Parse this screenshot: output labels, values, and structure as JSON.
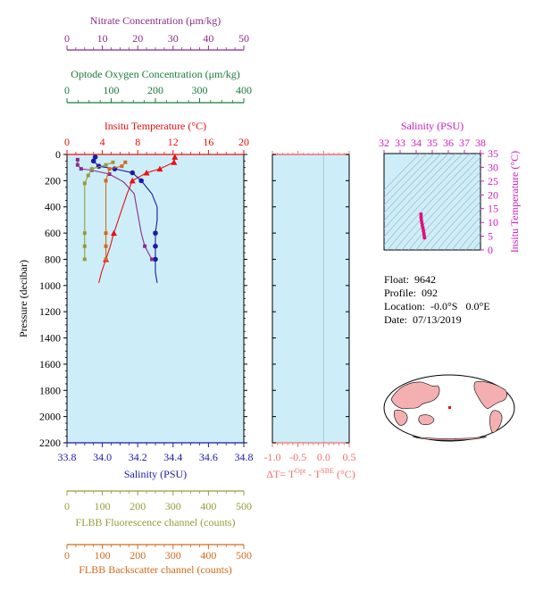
{
  "colors": {
    "nitrate": "#8b2c8b",
    "oxygen": "#1a7a3c",
    "temperature": "#e81010",
    "salinity": "#1a1aa8",
    "fluorescence": "#9a9a3a",
    "backscatter": "#d46a1a",
    "delta_t": "#f07070",
    "ts_axis": "#d01cc0",
    "plot_bg": "#cdeef8",
    "land": "#f4b0b0"
  },
  "info": {
    "float_label": "Float:",
    "float_value": "9642",
    "profile_label": "Profile:",
    "profile_value": "092",
    "location_label": "Location:",
    "location_value": "-0.0°S   0.0°E",
    "date_label": "Date:",
    "date_value": "07/13/2019"
  },
  "chart_data": [
    {
      "type": "line",
      "title": "",
      "ylabel": "Pressure (decibar)",
      "ylim": [
        2200,
        0
      ],
      "yticks": [
        0,
        200,
        400,
        600,
        800,
        1000,
        1200,
        1400,
        1600,
        1800,
        2000,
        2200
      ],
      "grid": false,
      "axes": {
        "nitrate": {
          "label": "Nitrate Concentration (μm/kg)",
          "range": [
            0,
            50
          ],
          "ticks": [
            0,
            10,
            20,
            30,
            40,
            50
          ]
        },
        "oxygen": {
          "label": "Optode Oxygen Concentration (μm/kg)",
          "range": [
            0,
            400
          ],
          "ticks": [
            0,
            100,
            200,
            300,
            400
          ]
        },
        "temperature": {
          "label": "Insitu Temperature (°C)",
          "range": [
            0,
            20
          ],
          "ticks": [
            0,
            4,
            8,
            12,
            16,
            20
          ]
        },
        "salinity": {
          "label": "Salinity (PSU)",
          "range": [
            33.8,
            34.8
          ],
          "ticks": [
            "33.8",
            "34.0",
            "34.2",
            "34.4",
            "34.6",
            "34.8"
          ]
        },
        "fluorescence": {
          "label": "FLBB Fluorescence channel (counts)",
          "range": [
            0,
            500
          ],
          "ticks": [
            0,
            100,
            200,
            300,
            400,
            500
          ]
        },
        "backscatter": {
          "label": "FLBB Backscatter channel (counts)",
          "range": [
            0,
            500
          ],
          "ticks": [
            0,
            100,
            200,
            300,
            400,
            500
          ]
        }
      },
      "series": [
        {
          "axis": "temperature",
          "points": [
            [
              12.2,
              20
            ],
            [
              12.1,
              60
            ],
            [
              10.5,
              110
            ],
            [
              9.0,
              140
            ],
            [
              7.4,
              200
            ],
            [
              6.8,
              300
            ],
            [
              6.3,
              400
            ],
            [
              5.8,
              500
            ],
            [
              5.3,
              600
            ],
            [
              4.9,
              700
            ],
            [
              4.4,
              800
            ],
            [
              3.9,
              900
            ],
            [
              3.6,
              980
            ]
          ],
          "markers_at": [
            0,
            1,
            2,
            3,
            4,
            8,
            10
          ]
        },
        {
          "axis": "salinity",
          "points": [
            [
              33.96,
              20
            ],
            [
              33.95,
              50
            ],
            [
              33.98,
              90
            ],
            [
              34.07,
              110
            ],
            [
              34.17,
              140
            ],
            [
              34.22,
              200
            ],
            [
              34.28,
              300
            ],
            [
              34.31,
              400
            ],
            [
              34.31,
              500
            ],
            [
              34.3,
              600
            ],
            [
              34.3,
              700
            ],
            [
              34.3,
              800
            ],
            [
              34.3,
              900
            ],
            [
              34.31,
              980
            ]
          ],
          "markers_at": [
            0,
            1,
            2,
            3,
            4,
            5,
            9,
            10,
            11
          ]
        },
        {
          "axis": "nitrate",
          "points": [
            [
              3,
              40
            ],
            [
              3,
              80
            ],
            [
              4,
              110
            ],
            [
              7,
              120
            ],
            [
              12,
              150
            ],
            [
              16,
              210
            ],
            [
              19,
              300
            ],
            [
              20,
              450
            ],
            [
              21,
              600
            ],
            [
              22,
              700
            ],
            [
              24,
              800
            ]
          ],
          "markers_at": [
            0,
            1,
            2,
            3,
            4,
            9,
            10
          ]
        },
        {
          "axis": "fluorescence",
          "points": [
            [
              130,
              60
            ],
            [
              110,
              80
            ],
            [
              70,
              110
            ],
            [
              60,
              160
            ],
            [
              50,
              220
            ],
            [
              50,
              400
            ],
            [
              50,
              600
            ],
            [
              50,
              700
            ],
            [
              50,
              800
            ]
          ],
          "markers_at": [
            0,
            1,
            2,
            3,
            4,
            6,
            7,
            8
          ]
        },
        {
          "axis": "backscatter",
          "points": [
            [
              165,
              60
            ],
            [
              155,
              90
            ],
            [
              120,
              110
            ],
            [
              110,
              200
            ],
            [
              110,
              400
            ],
            [
              110,
              600
            ],
            [
              110,
              700
            ],
            [
              110,
              800
            ]
          ],
          "markers_at": [
            0,
            1,
            2,
            3,
            5,
            6,
            7
          ]
        }
      ]
    },
    {
      "type": "line",
      "title": "",
      "xlabel": "ΔT= T^Opt - T^SBE (°C)",
      "xlim": [
        -1.0,
        0.5
      ],
      "xticks": [
        "-1.0",
        "-0.5",
        "0.0",
        "0.5"
      ],
      "ylim": [
        2200,
        0
      ],
      "grid": false,
      "series": [
        {
          "points": [
            [
              0.0,
              0
            ]
          ]
        }
      ]
    },
    {
      "type": "scatter",
      "title": "",
      "xlabel": "Salinity (PSU)",
      "ylabel": "Insitu Temperature (°C)",
      "xlim": [
        32,
        38
      ],
      "ylim": [
        0,
        35
      ],
      "xticks": [
        32,
        33,
        34,
        35,
        36,
        37,
        38
      ],
      "yticks": [
        0,
        5,
        10,
        15,
        20,
        25,
        30,
        35
      ],
      "grid": false,
      "series": [
        {
          "points": [
            [
              34.3,
              12.0
            ],
            [
              34.32,
              11.0
            ],
            [
              34.35,
              10.0
            ],
            [
              34.38,
              9.0
            ],
            [
              34.42,
              8.0
            ],
            [
              34.45,
              7.0
            ],
            [
              34.48,
              6.0
            ],
            [
              34.5,
              5.0
            ],
            [
              34.52,
              4.4
            ],
            [
              34.3,
              13.0
            ]
          ]
        }
      ]
    }
  ]
}
